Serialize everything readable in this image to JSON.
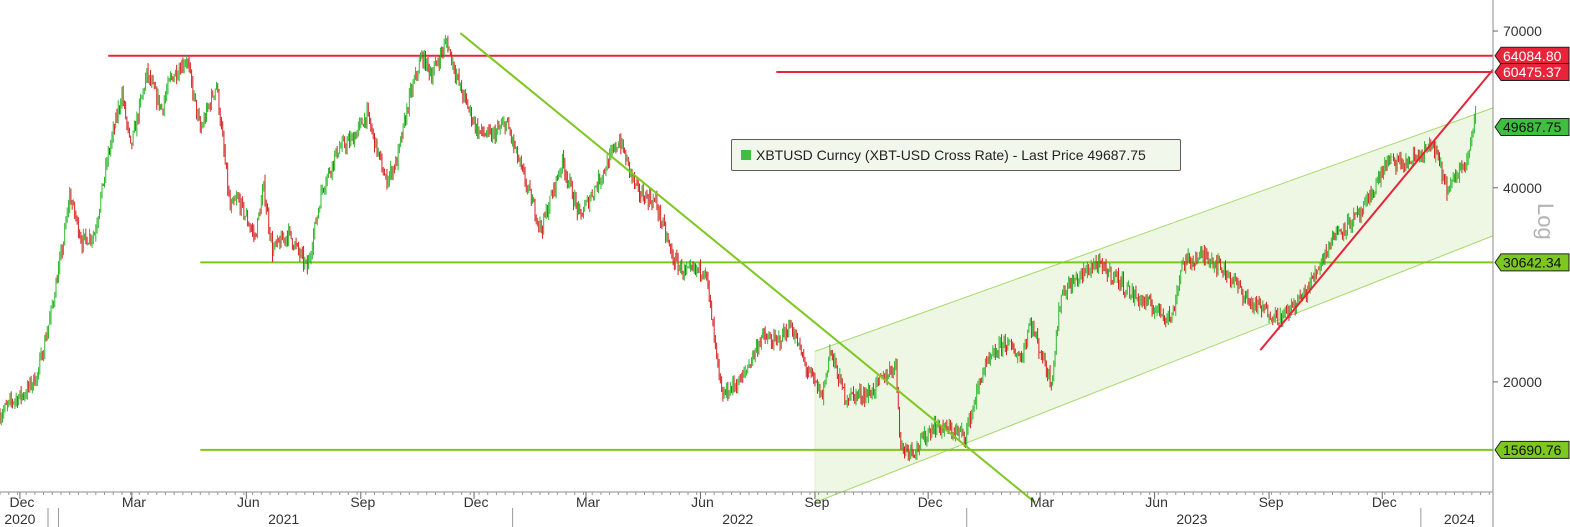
{
  "chart_data": {
    "type": "line",
    "subtype": "candlestick",
    "scale": "log",
    "ylim": [
      13500,
      76000
    ],
    "y_ticks": [
      20000,
      40000,
      70000
    ],
    "y_tick_labels": [
      "20000",
      "40000",
      "70000"
    ],
    "x_axis": {
      "start": "2020-11-15",
      "end": "2024-02-28",
      "months": [
        {
          "label": "Dec",
          "date": "2020-12-01"
        },
        {
          "label": "Mar",
          "date": "2021-03-01"
        },
        {
          "label": "Jun",
          "date": "2021-06-01"
        },
        {
          "label": "Sep",
          "date": "2021-09-01"
        },
        {
          "label": "Dec",
          "date": "2021-12-01"
        },
        {
          "label": "Mar",
          "date": "2022-03-01"
        },
        {
          "label": "Jun",
          "date": "2022-06-01"
        },
        {
          "label": "Sep",
          "date": "2022-09-01"
        },
        {
          "label": "Dec",
          "date": "2022-12-01"
        },
        {
          "label": "Mar",
          "date": "2023-03-01"
        },
        {
          "label": "Jun",
          "date": "2023-06-01"
        },
        {
          "label": "Sep",
          "date": "2023-09-01"
        },
        {
          "label": "Dec",
          "date": "2023-12-01"
        }
      ],
      "years": [
        {
          "label": "2020",
          "date": "2020-12-01"
        },
        {
          "label": "2021",
          "date": "2021-07-01"
        },
        {
          "label": "2022",
          "date": "2022-07-01"
        },
        {
          "label": "2023",
          "date": "2023-07-01"
        },
        {
          "label": "2024",
          "date": "2024-02-01"
        }
      ],
      "year_separators": [
        "2021-01-01",
        "2022-01-01",
        "2023-01-01",
        "2024-01-01"
      ]
    },
    "legend": {
      "text": "XBTUSD Curncy (XBT-USD Cross Rate) - Last Price 49687.75",
      "color": "#3fbf3f",
      "placement": "center"
    },
    "scale_label": "Log",
    "price_path": [
      [
        "2020-11-15",
        17800
      ],
      [
        "2020-11-25",
        18700
      ],
      [
        "2020-12-05",
        19200
      ],
      [
        "2020-12-15",
        20500
      ],
      [
        "2020-12-25",
        25000
      ],
      [
        "2021-01-05",
        33000
      ],
      [
        "2021-01-10",
        39000
      ],
      [
        "2021-01-20",
        33000
      ],
      [
        "2021-01-30",
        34000
      ],
      [
        "2021-02-10",
        45000
      ],
      [
        "2021-02-21",
        56000
      ],
      [
        "2021-02-28",
        46000
      ],
      [
        "2021-03-13",
        60000
      ],
      [
        "2021-03-25",
        53000
      ],
      [
        "2021-04-01",
        59000
      ],
      [
        "2021-04-14",
        63500
      ],
      [
        "2021-04-25",
        49000
      ],
      [
        "2021-05-08",
        58000
      ],
      [
        "2021-05-19",
        37000
      ],
      [
        "2021-05-25",
        38500
      ],
      [
        "2021-06-08",
        33500
      ],
      [
        "2021-06-15",
        40000
      ],
      [
        "2021-06-22",
        32000
      ],
      [
        "2021-07-05",
        34000
      ],
      [
        "2021-07-20",
        30000
      ],
      [
        "2021-08-01",
        40000
      ],
      [
        "2021-08-14",
        46000
      ],
      [
        "2021-08-25",
        47500
      ],
      [
        "2021-09-06",
        52000
      ],
      [
        "2021-09-21",
        41000
      ],
      [
        "2021-09-30",
        44000
      ],
      [
        "2021-10-10",
        55000
      ],
      [
        "2021-10-20",
        64000
      ],
      [
        "2021-10-28",
        60000
      ],
      [
        "2021-11-09",
        67500
      ],
      [
        "2021-11-20",
        57000
      ],
      [
        "2021-12-04",
        49000
      ],
      [
        "2021-12-15",
        48000
      ],
      [
        "2021-12-27",
        50500
      ],
      [
        "2022-01-10",
        41500
      ],
      [
        "2022-01-24",
        34500
      ],
      [
        "2022-02-10",
        44000
      ],
      [
        "2022-02-24",
        36000
      ],
      [
        "2022-03-28",
        47500
      ],
      [
        "2022-04-11",
        39500
      ],
      [
        "2022-04-26",
        38000
      ],
      [
        "2022-05-10",
        31000
      ],
      [
        "2022-05-20",
        29500
      ],
      [
        "2022-06-05",
        30000
      ],
      [
        "2022-06-13",
        22500
      ],
      [
        "2022-06-18",
        19000
      ],
      [
        "2022-07-05",
        20300
      ],
      [
        "2022-07-20",
        23500
      ],
      [
        "2022-08-01",
        23000
      ],
      [
        "2022-08-13",
        24500
      ],
      [
        "2022-08-25",
        21000
      ],
      [
        "2022-09-07",
        19000
      ],
      [
        "2022-09-13",
        22400
      ],
      [
        "2022-09-25",
        19000
      ],
      [
        "2022-10-15",
        19200
      ],
      [
        "2022-11-05",
        21300
      ],
      [
        "2022-11-09",
        15800
      ],
      [
        "2022-11-21",
        15700
      ],
      [
        "2022-12-05",
        17100
      ],
      [
        "2022-12-20",
        16800
      ],
      [
        "2022-12-31",
        16550
      ],
      [
        "2023-01-14",
        20800
      ],
      [
        "2023-01-31",
        23100
      ],
      [
        "2023-02-14",
        21800
      ],
      [
        "2023-02-21",
        24800
      ],
      [
        "2023-03-10",
        20000
      ],
      [
        "2023-03-18",
        27500
      ],
      [
        "2023-04-14",
        30500
      ],
      [
        "2023-04-30",
        29200
      ],
      [
        "2023-05-15",
        27200
      ],
      [
        "2023-06-15",
        25100
      ],
      [
        "2023-06-23",
        30500
      ],
      [
        "2023-07-13",
        31500
      ],
      [
        "2023-07-31",
        29300
      ],
      [
        "2023-08-17",
        26500
      ],
      [
        "2023-09-11",
        25100
      ],
      [
        "2023-10-01",
        27600
      ],
      [
        "2023-10-23",
        33800
      ],
      [
        "2023-11-15",
        36600
      ],
      [
        "2023-12-05",
        44000
      ],
      [
        "2023-12-20",
        43500
      ],
      [
        "2024-01-11",
        46500
      ],
      [
        "2024-01-23",
        39500
      ],
      [
        "2024-02-08",
        45300
      ],
      [
        "2024-02-14",
        51800
      ]
    ],
    "horizontal_lines": [
      {
        "value": 64084.8,
        "label": "64084.80",
        "color": "#e8233a",
        "from": "2021-02-10",
        "to": "2024-02-28"
      },
      {
        "value": 60475.37,
        "label": "60475.37",
        "color": "#e8233a",
        "from": "2022-08-01",
        "to": "2024-02-28"
      },
      {
        "value": 30642.34,
        "label": "30642.34",
        "color": "#7dc820",
        "from": "2021-04-25",
        "to": "2024-02-28"
      },
      {
        "value": 15690.76,
        "label": "15690.76",
        "color": "#7dc820",
        "from": "2021-04-25",
        "to": "2024-02-28"
      }
    ],
    "last_price": {
      "value": 49687.75,
      "label": "49687.75",
      "color": "#3fbf3f"
    },
    "trend_lines": [
      {
        "from": [
          "2021-11-20",
          69500
        ],
        "to": [
          "2023-02-25",
          13000
        ],
        "color": "#7dc820"
      },
      {
        "from": [
          "2023-08-25",
          22400
        ],
        "to": [
          "2024-02-28",
          61000
        ],
        "color": "#e8233a"
      }
    ],
    "channel": {
      "start": "2022-09-01",
      "end": "2024-02-28",
      "upper_start": 22300,
      "upper_end": 53200,
      "lower_start": 13000,
      "lower_end": 33700,
      "fill": "#eef7e3",
      "line_color": "#a6d96a"
    }
  }
}
